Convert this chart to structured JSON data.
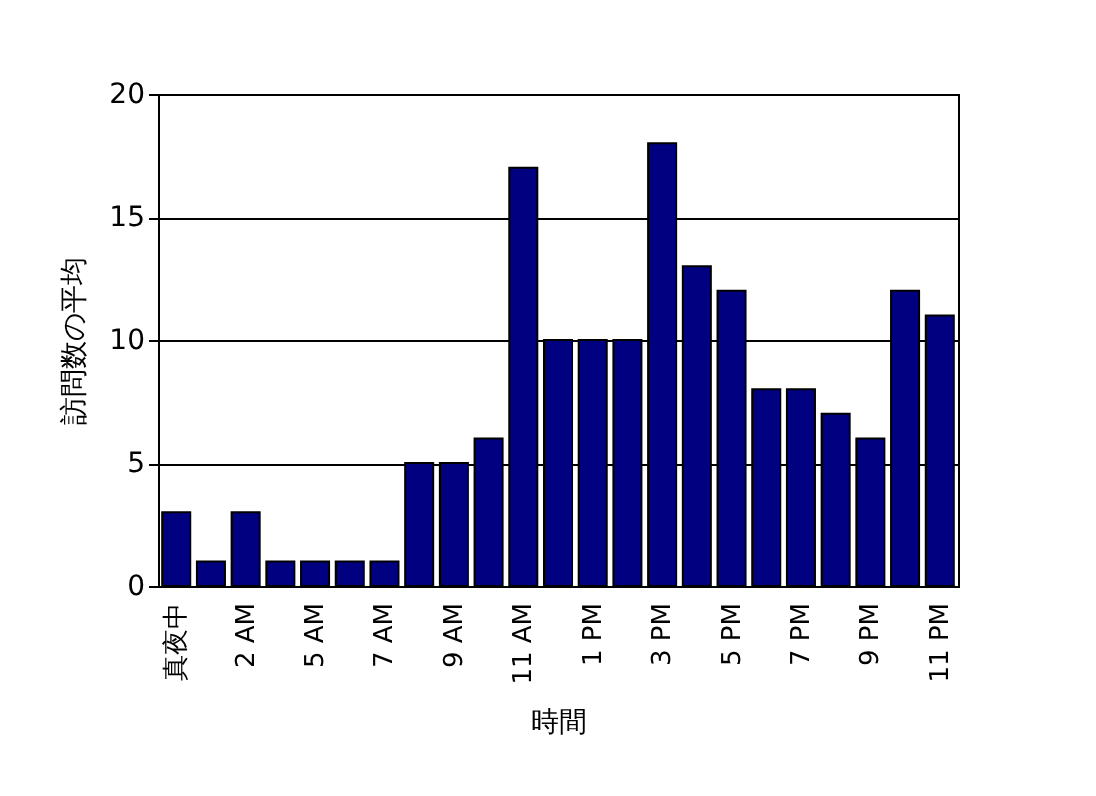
{
  "chart_data": {
    "type": "bar",
    "xlabel": "時間",
    "ylabel": "訪問数の平均",
    "categories": [
      "真夜中",
      null,
      "2 AM",
      null,
      "5 AM",
      null,
      "7 AM",
      null,
      "9 AM",
      null,
      "11 AM",
      null,
      "1 PM",
      null,
      "3 PM",
      null,
      "5 PM",
      null,
      "7 PM",
      null,
      "9 PM",
      null,
      "11 PM"
    ],
    "values": [
      3,
      1,
      3,
      1,
      1,
      1,
      1,
      5,
      5,
      6,
      17,
      10,
      10,
      10,
      18,
      13,
      12,
      8,
      8,
      7,
      6,
      12,
      11
    ],
    "color": "#000080",
    "ylim": [
      0,
      20
    ],
    "yticks": [
      0,
      5,
      10,
      15,
      20
    ],
    "grid": "y"
  }
}
